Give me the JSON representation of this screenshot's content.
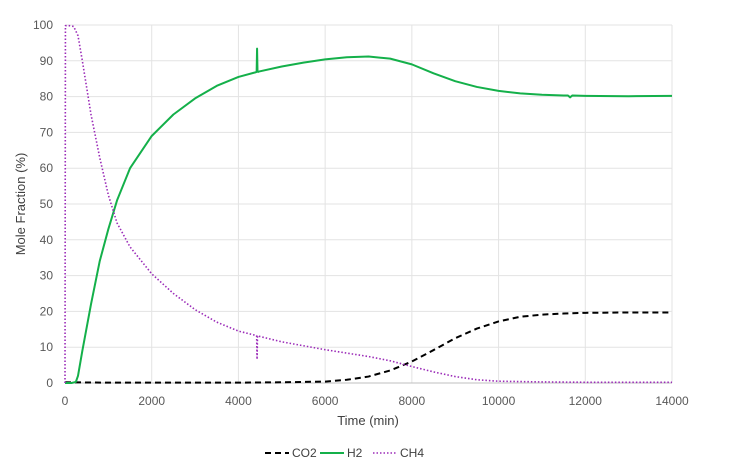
{
  "chart_data": {
    "type": "line",
    "title": "",
    "xlabel": "Time (min)",
    "ylabel": "Mole Fraction (%)",
    "xlim": [
      0,
      14000
    ],
    "ylim": [
      0,
      100
    ],
    "xticks": [
      0,
      2000,
      4000,
      6000,
      8000,
      10000,
      12000,
      14000
    ],
    "yticks": [
      0,
      10,
      20,
      30,
      40,
      50,
      60,
      70,
      80,
      90,
      100
    ],
    "grid": true,
    "legend_position": "bottom",
    "series": [
      {
        "name": "CO2",
        "color": "#000000",
        "dash": "dashed",
        "x": [
          0,
          1000,
          2000,
          3000,
          4000,
          5000,
          6000,
          6500,
          7000,
          7500,
          8000,
          8500,
          9000,
          9500,
          10000,
          10500,
          11000,
          11500,
          12000,
          13000,
          14000
        ],
        "y": [
          0.2,
          0.1,
          0.1,
          0.1,
          0.1,
          0.2,
          0.4,
          0.9,
          1.8,
          3.5,
          6.0,
          9.2,
          12.5,
          15.2,
          17.2,
          18.5,
          19.1,
          19.4,
          19.6,
          19.7,
          19.7
        ]
      },
      {
        "name": "H2",
        "color": "#14b04a",
        "dash": "solid",
        "x": [
          0,
          150,
          250,
          300,
          400,
          600,
          800,
          1000,
          1200,
          1500,
          2000,
          2500,
          3000,
          3500,
          4000,
          4400,
          4420,
          4430,
          4440,
          4450,
          4460,
          4470,
          5000,
          5500,
          6000,
          6500,
          7000,
          7500,
          8000,
          8500,
          9000,
          9500,
          10000,
          10500,
          11000,
          11500,
          11600,
          11650,
          11700,
          12000,
          13000,
          14000
        ],
        "y": [
          0,
          0,
          0.3,
          2,
          9,
          22,
          34,
          43,
          51,
          60,
          69,
          75,
          79.5,
          83,
          85.5,
          86.8,
          86.9,
          93.4,
          87,
          86.9,
          86.9,
          87,
          88.4,
          89.5,
          90.4,
          91,
          91.2,
          90.6,
          89,
          86.5,
          84.3,
          82.7,
          81.6,
          80.9,
          80.5,
          80.3,
          80.3,
          79.8,
          80.3,
          80.2,
          80.1,
          80.2
        ]
      },
      {
        "name": "CH4",
        "color": "#9b2bb8",
        "dash": "dotted",
        "x": [
          0,
          5,
          10,
          100,
          200,
          300,
          400,
          600,
          800,
          1000,
          1200,
          1500,
          2000,
          2500,
          3000,
          3500,
          4000,
          4400,
          4420,
          4430,
          4440,
          4450,
          4460,
          5000,
          6000,
          7000,
          7500,
          8000,
          8500,
          9000,
          9500,
          10000,
          11000,
          12000,
          13000,
          14000
        ],
        "y": [
          0,
          50,
          99.8,
          99.8,
          99.6,
          97,
          90,
          75,
          63,
          52.5,
          44.7,
          38,
          30.5,
          25,
          20.5,
          17,
          14.5,
          13.3,
          13.2,
          6.6,
          13.2,
          13.2,
          13.1,
          11.5,
          9.3,
          7.4,
          6.2,
          4.6,
          3.1,
          1.8,
          0.9,
          0.5,
          0.3,
          0.2,
          0.2,
          0.2
        ]
      }
    ]
  }
}
